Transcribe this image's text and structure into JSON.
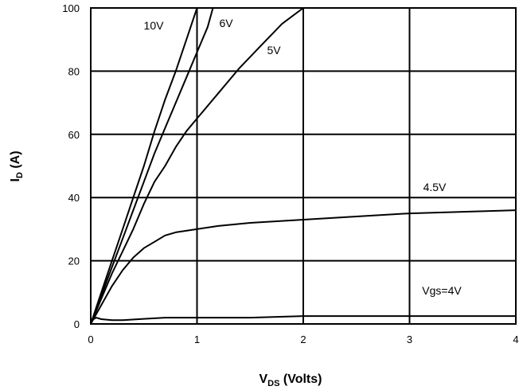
{
  "chart_data": {
    "type": "line",
    "xlabel": {
      "main": "V",
      "sub": "DS",
      "rest": " (Volts)"
    },
    "ylabel": {
      "main": "I",
      "sub": "D",
      "rest": " (A)"
    },
    "xlim": [
      0,
      4
    ],
    "ylim": [
      0,
      100
    ],
    "xticks": [
      "0",
      "1",
      "2",
      "3",
      "4"
    ],
    "yticks": [
      "0",
      "20",
      "40",
      "60",
      "80",
      "100"
    ],
    "grid": true,
    "legend": "none",
    "colors": {
      "line": "#000000",
      "grid": "#000000"
    },
    "series": [
      {
        "name": "10V",
        "x": [
          0,
          0.1,
          0.2,
          0.3,
          0.4,
          0.5,
          0.6,
          0.7,
          0.8,
          0.9,
          1.0
        ],
        "y": [
          0,
          10,
          20,
          30,
          40,
          50,
          61,
          71,
          80,
          90,
          100
        ]
      },
      {
        "name": "6V",
        "x": [
          0,
          0.1,
          0.2,
          0.3,
          0.4,
          0.5,
          0.6,
          0.7,
          0.8,
          0.9,
          1.0,
          1.1,
          1.15
        ],
        "y": [
          0,
          9,
          18,
          27,
          36,
          45,
          54,
          62,
          70,
          78,
          86,
          94,
          100
        ]
      },
      {
        "name": "5V",
        "x": [
          0,
          0.1,
          0.2,
          0.3,
          0.4,
          0.5,
          0.6,
          0.7,
          0.8,
          0.9,
          1.0,
          1.2,
          1.4,
          1.6,
          1.8,
          2.0
        ],
        "y": [
          0,
          8,
          16,
          23,
          30,
          38,
          45,
          50,
          56,
          61,
          65,
          73,
          81,
          88,
          95,
          100
        ]
      },
      {
        "name": "4.5V",
        "x": [
          0,
          0.1,
          0.2,
          0.3,
          0.4,
          0.5,
          0.6,
          0.7,
          0.8,
          1.0,
          1.2,
          1.5,
          2.0,
          2.5,
          3.0,
          3.5,
          4.0
        ],
        "y": [
          0,
          6,
          12,
          17,
          21,
          24,
          26,
          28,
          29,
          30,
          31,
          32,
          33,
          34,
          35,
          35.5,
          36
        ]
      },
      {
        "name": "Vgs=4V",
        "x": [
          0,
          0.05,
          0.1,
          0.2,
          0.3,
          0.5,
          0.7,
          1.0,
          1.5,
          2.0,
          2.5,
          3.0,
          3.5,
          4.0
        ],
        "y": [
          1,
          2,
          1.5,
          1.2,
          1.2,
          1.6,
          2,
          2,
          2,
          2.5,
          2.5,
          2.5,
          2.5,
          2.5
        ]
      }
    ]
  }
}
